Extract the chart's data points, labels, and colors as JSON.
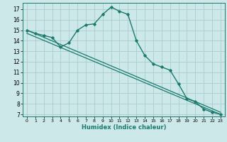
{
  "title": "",
  "xlabel": "Humidex (Indice chaleur)",
  "ylabel": "",
  "background_color": "#cce8e8",
  "grid_color": "#aacccc",
  "line_color": "#1a7a6e",
  "xlim": [
    -0.5,
    23.5
  ],
  "ylim": [
    6.8,
    17.6
  ],
  "yticks": [
    7,
    8,
    9,
    10,
    11,
    12,
    13,
    14,
    15,
    16,
    17
  ],
  "xticks": [
    0,
    1,
    2,
    3,
    4,
    5,
    6,
    7,
    8,
    9,
    10,
    11,
    12,
    13,
    14,
    15,
    16,
    17,
    18,
    19,
    20,
    21,
    22,
    23
  ],
  "line1_x": [
    0,
    1,
    2,
    3,
    4,
    5,
    6,
    7,
    8,
    9,
    10,
    11,
    12,
    13,
    14,
    15,
    16,
    17,
    18,
    19,
    20,
    21,
    22,
    23
  ],
  "line1_y": [
    15.0,
    14.7,
    14.5,
    14.3,
    13.4,
    13.8,
    15.0,
    15.5,
    15.6,
    16.5,
    17.2,
    16.8,
    16.5,
    14.0,
    12.6,
    11.8,
    11.5,
    11.2,
    9.9,
    8.5,
    8.2,
    7.5,
    7.2,
    7.0
  ],
  "line2_x": [
    0,
    23
  ],
  "line2_y": [
    15.0,
    7.2
  ],
  "line3_x": [
    0,
    23
  ],
  "line3_y": [
    14.7,
    7.0
  ]
}
